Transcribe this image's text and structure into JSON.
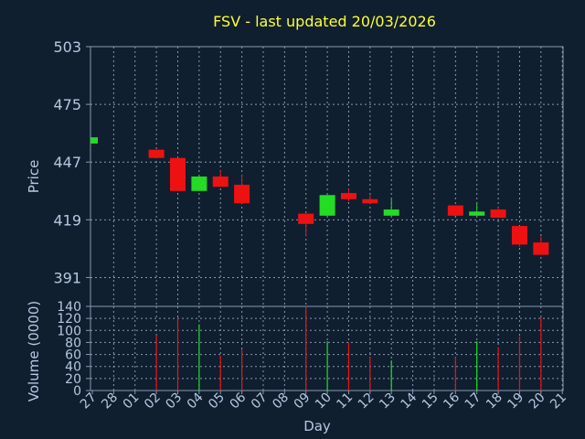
{
  "title": "FSV - last updated 20/03/2026",
  "colors": {
    "background": "#0f1f30",
    "title": "#ffff33",
    "up": "#22dd22",
    "down": "#ee1111",
    "grid": "#8898b0",
    "text": "#b8c8e0"
  },
  "chart_data": [
    {
      "type": "candlestick",
      "ylabel": "Price",
      "ylim": [
        377,
        503
      ],
      "yticks": [
        391,
        419,
        447,
        475,
        503
      ],
      "grid": true,
      "x": [
        "27",
        "28",
        "01",
        "02",
        "03",
        "04",
        "05",
        "06",
        "07",
        "08",
        "09",
        "10",
        "11",
        "12",
        "13",
        "14",
        "15",
        "16",
        "17",
        "18",
        "19",
        "20",
        "21"
      ],
      "candles": [
        {
          "x": "27",
          "open": 456,
          "close": 459,
          "high": 459,
          "low": 456
        },
        {
          "x": "02",
          "open": 453,
          "close": 449,
          "high": 453,
          "low": 449
        },
        {
          "x": "03",
          "open": 449,
          "close": 433,
          "high": 449,
          "low": 433
        },
        {
          "x": "04",
          "open": 433,
          "close": 440,
          "high": 440,
          "low": 433
        },
        {
          "x": "05",
          "open": 440,
          "close": 435,
          "high": 443,
          "low": 435
        },
        {
          "x": "06",
          "open": 436,
          "close": 427,
          "high": 441,
          "low": 427
        },
        {
          "x": "09",
          "open": 422,
          "close": 417,
          "high": 422,
          "low": 411
        },
        {
          "x": "10",
          "open": 421,
          "close": 431,
          "high": 431,
          "low": 421
        },
        {
          "x": "11",
          "open": 432,
          "close": 429,
          "high": 434,
          "low": 428
        },
        {
          "x": "12",
          "open": 429,
          "close": 427,
          "high": 431,
          "low": 427
        },
        {
          "x": "13",
          "open": 421,
          "close": 424,
          "high": 429,
          "low": 421
        },
        {
          "x": "16",
          "open": 426,
          "close": 421,
          "high": 426,
          "low": 421
        },
        {
          "x": "17",
          "open": 421,
          "close": 423,
          "high": 427,
          "low": 421
        },
        {
          "x": "18",
          "open": 424,
          "close": 420,
          "high": 425,
          "low": 420
        },
        {
          "x": "19",
          "open": 416,
          "close": 407,
          "high": 416,
          "low": 406
        },
        {
          "x": "20",
          "open": 408,
          "close": 402,
          "high": 411,
          "low": 402
        }
      ]
    },
    {
      "type": "bar",
      "xlabel": "Day",
      "ylabel": "Volume (0000)",
      "ylim": [
        0,
        140
      ],
      "yticks": [
        0,
        20,
        40,
        60,
        80,
        100,
        120,
        140
      ],
      "x": [
        "27",
        "28",
        "01",
        "02",
        "03",
        "04",
        "05",
        "06",
        "07",
        "08",
        "09",
        "10",
        "11",
        "12",
        "13",
        "14",
        "15",
        "16",
        "17",
        "18",
        "19",
        "20",
        "21"
      ],
      "bars": [
        {
          "x": "02",
          "value": 92,
          "dir": "down"
        },
        {
          "x": "03",
          "value": 120,
          "dir": "down"
        },
        {
          "x": "04",
          "value": 110,
          "dir": "up"
        },
        {
          "x": "05",
          "value": 58,
          "dir": "down"
        },
        {
          "x": "06",
          "value": 68,
          "dir": "down"
        },
        {
          "x": "09",
          "value": 140,
          "dir": "down"
        },
        {
          "x": "10",
          "value": 82,
          "dir": "up"
        },
        {
          "x": "11",
          "value": 80,
          "dir": "down"
        },
        {
          "x": "12",
          "value": 56,
          "dir": "down"
        },
        {
          "x": "13",
          "value": 50,
          "dir": "up"
        },
        {
          "x": "16",
          "value": 56,
          "dir": "down"
        },
        {
          "x": "17",
          "value": 82,
          "dir": "up"
        },
        {
          "x": "18",
          "value": 72,
          "dir": "down"
        },
        {
          "x": "19",
          "value": 90,
          "dir": "down"
        },
        {
          "x": "20",
          "value": 122,
          "dir": "down"
        }
      ]
    }
  ]
}
